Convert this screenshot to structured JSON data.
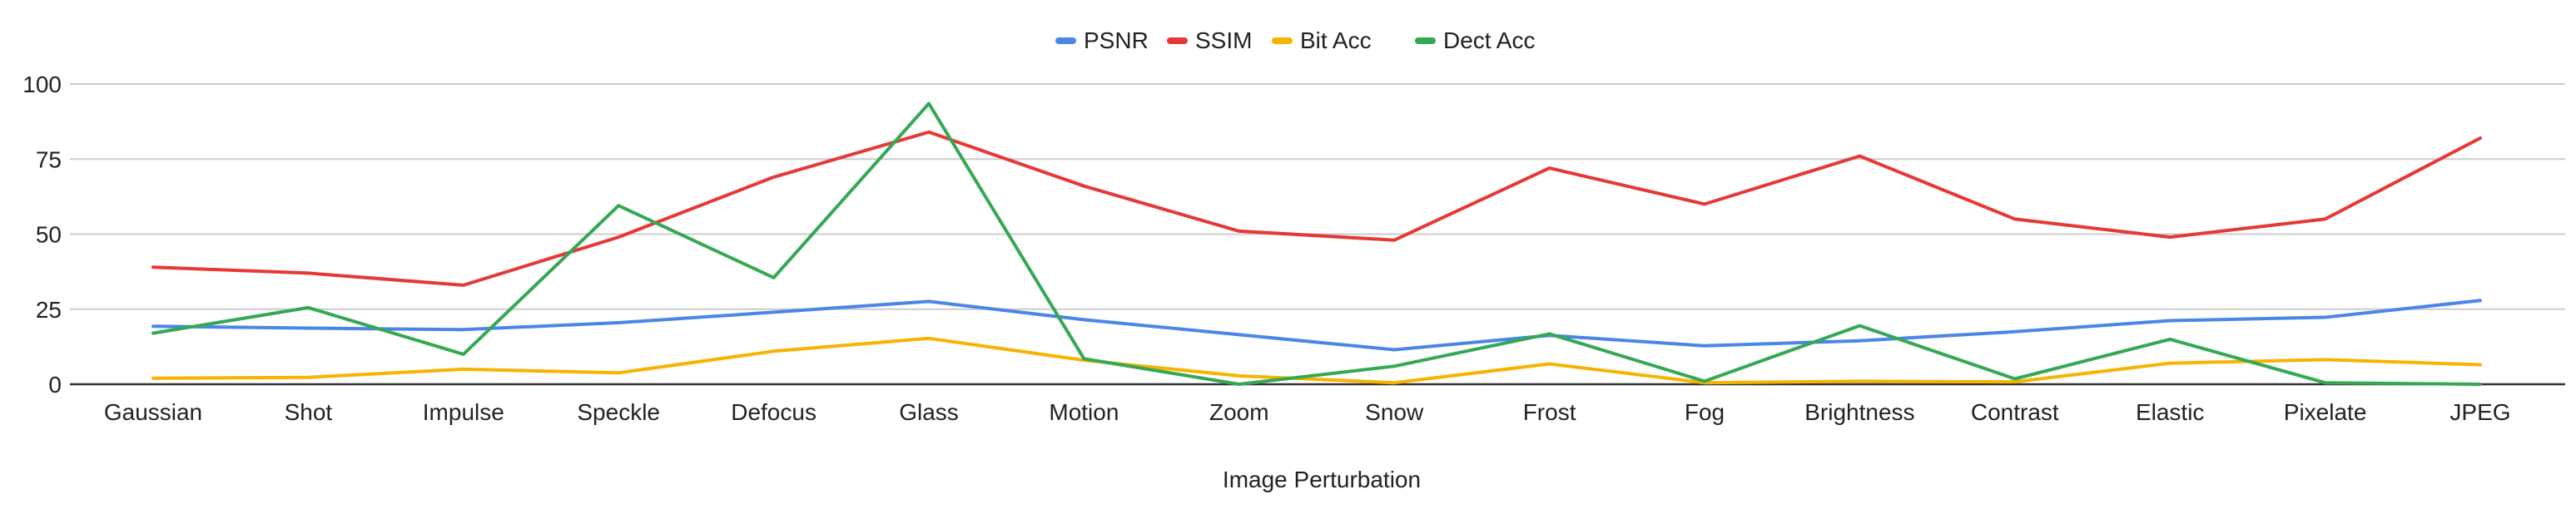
{
  "chart_data": {
    "type": "line",
    "title": "",
    "xlabel": "Image Perturbation",
    "ylabel": "",
    "ylim": [
      0,
      100
    ],
    "yticks": [
      0,
      25,
      50,
      75,
      100
    ],
    "grid": true,
    "legend_position": "top-center",
    "categories": [
      "Gaussian",
      "Shot",
      "Impulse",
      "Speckle",
      "Defocus",
      "Glass",
      "Motion",
      "Zoom",
      "Snow",
      "Frost",
      "Fog",
      "Brightness",
      "Contrast",
      "Elastic",
      "Pixelate",
      "JPEG"
    ],
    "series": [
      {
        "name": "PSNR",
        "color": "#4a86e8",
        "values": [
          19.3,
          18.7,
          18.2,
          20.5,
          24.0,
          27.6,
          21.5,
          16.5,
          11.5,
          16.3,
          12.8,
          14.5,
          17.5,
          21.2,
          22.3,
          27.9
        ]
      },
      {
        "name": "SSIM",
        "color": "#e53935",
        "values": [
          39.0,
          37.0,
          33.0,
          49.0,
          69.0,
          84.0,
          66.0,
          51.0,
          48.0,
          72.0,
          60.0,
          76.0,
          55.0,
          49.0,
          55.0,
          82.0
        ]
      },
      {
        "name": "Bit Acc",
        "color": "#f6b300",
        "values": [
          2.0,
          2.3,
          5.0,
          3.8,
          11.0,
          15.3,
          8.0,
          2.8,
          0.5,
          6.8,
          0.5,
          1.0,
          0.8,
          7.0,
          8.2,
          6.5
        ]
      },
      {
        "name": "Dect Acc",
        "color": "#34a853",
        "values": [
          17.0,
          25.5,
          10.0,
          59.5,
          35.5,
          93.5,
          8.5,
          0.0,
          6.0,
          16.8,
          1.0,
          19.5,
          1.8,
          15.0,
          0.5,
          0.0
        ]
      }
    ]
  }
}
